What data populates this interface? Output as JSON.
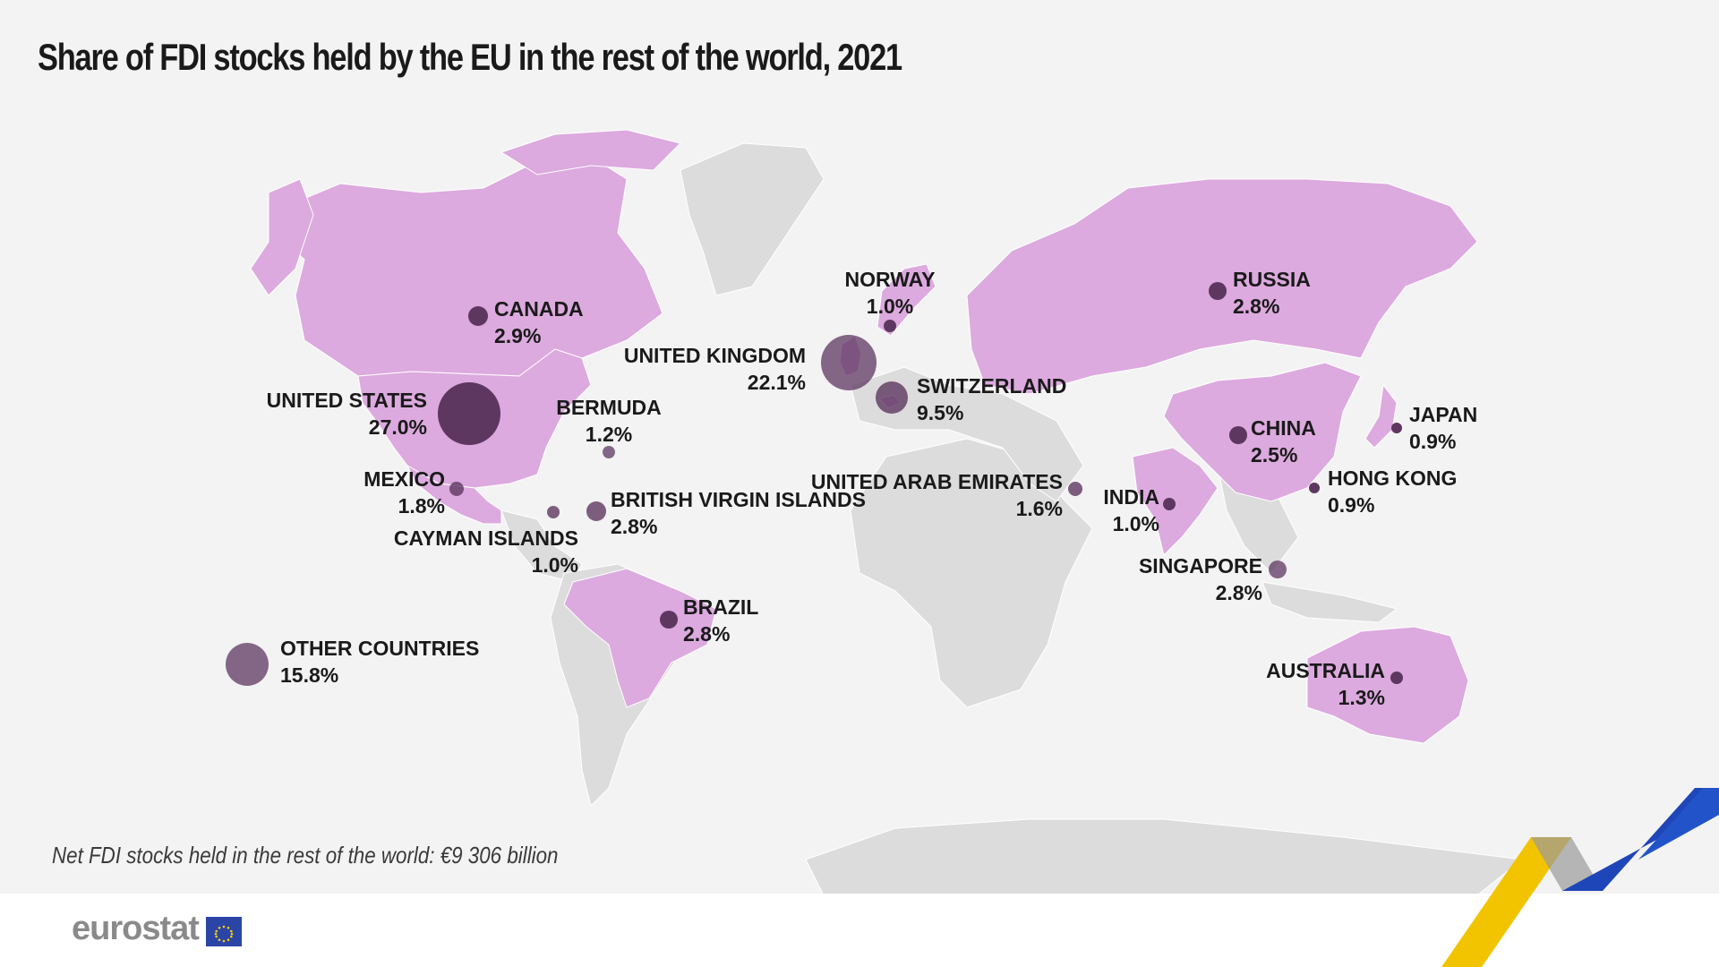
{
  "title": "Share of FDI stocks held by the EU in the rest of the world, 2021",
  "footnote": "Net FDI stocks held in the rest of the world:  €9 306 billion",
  "brand": {
    "name": "eurostat",
    "logo_icon": "eu-flag-icon"
  },
  "colors": {
    "background": "#f3f3f3",
    "land": "#dcdcdc",
    "highlight": "#dcaade",
    "bubble": "#5e3760",
    "bubble_alpha": "#6b4c6d"
  },
  "countries": [
    {
      "id": "canada",
      "name": "CANADA",
      "value": "2.9%"
    },
    {
      "id": "united-states",
      "name": "UNITED STATES",
      "value": "27.0%"
    },
    {
      "id": "bermuda",
      "name": "BERMUDA",
      "value": "1.2%"
    },
    {
      "id": "mexico",
      "name": "MEXICO",
      "value": "1.8%"
    },
    {
      "id": "cayman-islands",
      "name": "CAYMAN ISLANDS",
      "value": "1.0%"
    },
    {
      "id": "british-virgin-islands",
      "name": "BRITISH VIRGIN ISLANDS",
      "value": "2.8%"
    },
    {
      "id": "brazil",
      "name": "BRAZIL",
      "value": "2.8%"
    },
    {
      "id": "other-countries",
      "name": "OTHER COUNTRIES",
      "value": "15.8%"
    },
    {
      "id": "norway",
      "name": "NORWAY",
      "value": "1.0%"
    },
    {
      "id": "united-kingdom",
      "name": "UNITED KINGDOM",
      "value": "22.1%"
    },
    {
      "id": "switzerland",
      "name": "SWITZERLAND",
      "value": "9.5%"
    },
    {
      "id": "united-arab-emirates",
      "name": "UNITED ARAB EMIRATES",
      "value": "1.6%"
    },
    {
      "id": "india",
      "name": "INDIA",
      "value": "1.0%"
    },
    {
      "id": "russia",
      "name": "RUSSIA",
      "value": "2.8%"
    },
    {
      "id": "china",
      "name": "CHINA",
      "value": "2.5%"
    },
    {
      "id": "japan",
      "name": "JAPAN",
      "value": "0.9%"
    },
    {
      "id": "hong-kong",
      "name": "HONG KONG",
      "value": "0.9%"
    },
    {
      "id": "singapore",
      "name": "SINGAPORE",
      "value": "2.8%"
    },
    {
      "id": "australia",
      "name": "AUSTRALIA",
      "value": "1.3%"
    }
  ]
}
